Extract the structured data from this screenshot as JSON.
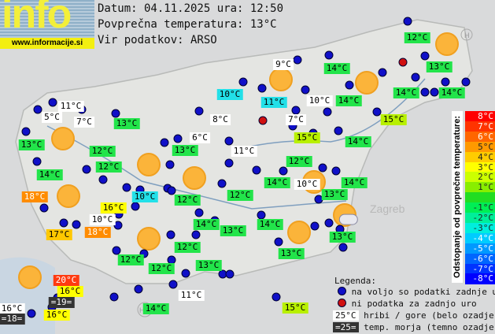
{
  "logo": {
    "text": "info",
    "url": "www.informacije.si"
  },
  "header": {
    "date_line": "Datum: 04.11.2025 ura: 12:50",
    "avg_line": "Povprečna temperatura: 13°C",
    "source_line": "Vir podatkov: ARSO"
  },
  "colors": {
    "green": "#22e44a",
    "cyan": "#22e0e8",
    "white": "#ffffff",
    "yellowgreen": "#b8f000",
    "yellow": "#ffff00",
    "gold": "#ffc800",
    "orange": "#ff8c00",
    "red": "#ff3a10",
    "dark": "#333333",
    "station": "#1010c8",
    "no_data": "#d01010"
  },
  "map_text": {
    "zagreb": "Zagreb",
    "hr": "HR",
    "h": "H"
  },
  "labels": [
    {
      "t": "12°C",
      "c": "green"
    },
    {
      "t": "9°C",
      "c": "white"
    },
    {
      "t": "14°C",
      "c": "green"
    },
    {
      "t": "13°C",
      "c": "green"
    },
    {
      "t": "10°C",
      "c": "cyan"
    },
    {
      "t": "11°C",
      "c": "cyan"
    },
    {
      "t": "10°C",
      "c": "white"
    },
    {
      "t": "14°C",
      "c": "green"
    },
    {
      "t": "14°C",
      "c": "green"
    },
    {
      "t": "14°C",
      "c": "green"
    },
    {
      "t": "11°C",
      "c": "white"
    },
    {
      "t": "5°C",
      "c": "white"
    },
    {
      "t": "7°C",
      "c": "white"
    },
    {
      "t": "13°C",
      "c": "green"
    },
    {
      "t": "8°C",
      "c": "white"
    },
    {
      "t": "7°C",
      "c": "white"
    },
    {
      "t": "15°C",
      "c": "yellowgreen"
    },
    {
      "t": "13°C",
      "c": "green"
    },
    {
      "t": "12°C",
      "c": "green"
    },
    {
      "t": "6°C",
      "c": "white"
    },
    {
      "t": "13°C",
      "c": "green"
    },
    {
      "t": "15°C",
      "c": "yellowgreen"
    },
    {
      "t": "14°C",
      "c": "green"
    },
    {
      "t": "11°C",
      "c": "white"
    },
    {
      "t": "12°C",
      "c": "green"
    },
    {
      "t": "12°C",
      "c": "green"
    },
    {
      "t": "14°C",
      "c": "green"
    },
    {
      "t": "14°C",
      "c": "green"
    },
    {
      "t": "10°C",
      "c": "white"
    },
    {
      "t": "14°C",
      "c": "green"
    },
    {
      "t": "18°C",
      "c": "orange"
    },
    {
      "t": "10°C",
      "c": "cyan"
    },
    {
      "t": "12°C",
      "c": "green"
    },
    {
      "t": "12°C",
      "c": "green"
    },
    {
      "t": "13°C",
      "c": "green"
    },
    {
      "t": "16°C",
      "c": "yellow"
    },
    {
      "t": "10°C",
      "c": "white"
    },
    {
      "t": "14°C",
      "c": "green"
    },
    {
      "t": "13°C",
      "c": "green"
    },
    {
      "t": "14°C",
      "c": "green"
    },
    {
      "t": "17°C",
      "c": "gold"
    },
    {
      "t": "18°C",
      "c": "orange"
    },
    {
      "t": "12°C",
      "c": "green"
    },
    {
      "t": "13°C",
      "c": "green"
    },
    {
      "t": "12°C",
      "c": "green"
    },
    {
      "t": "12°C",
      "c": "green"
    },
    {
      "t": "13°C",
      "c": "green"
    },
    {
      "t": "13°C",
      "c": "green"
    },
    {
      "t": "20°C",
      "c": "red"
    },
    {
      "t": "16°C",
      "c": "yellow"
    },
    {
      "t": "=19=",
      "c": "dark"
    },
    {
      "t": "16°C",
      "c": "white"
    },
    {
      "t": "=18=",
      "c": "dark"
    },
    {
      "t": "16°C",
      "c": "yellow"
    },
    {
      "t": "14°C",
      "c": "green"
    },
    {
      "t": "11°C",
      "c": "white"
    },
    {
      "t": "15°C",
      "c": "yellowgreen"
    }
  ],
  "scale": {
    "title": "Odstopanje od povprečne temperature:",
    "steps": [
      {
        "t": "8°C",
        "c": "#ff0000"
      },
      {
        "t": "7°C",
        "c": "#ff3300"
      },
      {
        "t": "6°C",
        "c": "#ff6600"
      },
      {
        "t": "5°C",
        "c": "#ff9900"
      },
      {
        "t": "4°C",
        "c": "#ffcc00"
      },
      {
        "t": "3°C",
        "c": "#ffff00"
      },
      {
        "t": "2°C",
        "c": "#ccff00"
      },
      {
        "t": "1°C",
        "c": "#88ee00"
      },
      {
        "t": "",
        "c": "#22dd22"
      },
      {
        "t": "-1°C",
        "c": "#00ee55"
      },
      {
        "t": "-2°C",
        "c": "#00ee99"
      },
      {
        "t": "-3°C",
        "c": "#00eedd"
      },
      {
        "t": "-4°C",
        "c": "#00ccff"
      },
      {
        "t": "-5°C",
        "c": "#0099ff"
      },
      {
        "t": "-6°C",
        "c": "#0066ff"
      },
      {
        "t": "-7°C",
        "c": "#0033ff"
      },
      {
        "t": "-8°C",
        "c": "#0000ff"
      }
    ]
  },
  "legend": {
    "title": "Legenda:",
    "station": "na voljo so podatki zadnje ure",
    "no_data": "ni podatka za zadnjo uro",
    "mountain_sample": "25°C",
    "mountain": "hribi / gore (belo ozadje)",
    "sea_sample": "=25=",
    "sea": "temp. morja (temno ozadje)"
  }
}
